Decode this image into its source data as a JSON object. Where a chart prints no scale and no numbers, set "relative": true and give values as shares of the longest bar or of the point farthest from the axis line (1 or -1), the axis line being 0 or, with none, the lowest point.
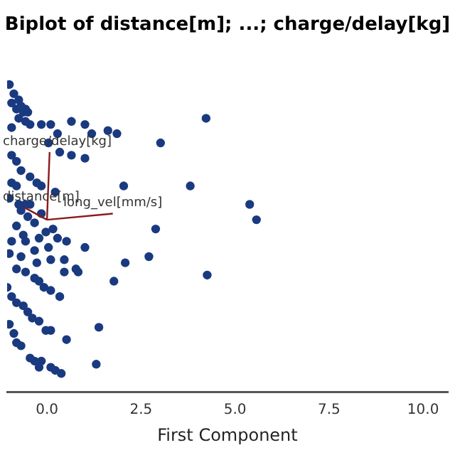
{
  "chart_data": {
    "type": "scatter",
    "title": "Biplot of distance[m]; ...; charge/delay[kg]",
    "xlabel": "First Component",
    "relative": true,
    "tick_labels": "x",
    "grid": false,
    "legend": false,
    "marker": "circle",
    "xlim": [
      -1.06,
      10.66
    ],
    "xticks": [
      {
        "value": 0,
        "label": "0.0"
      },
      {
        "value": 2.5,
        "label": "2.5"
      },
      {
        "value": 5,
        "label": "5.0"
      },
      {
        "value": 7.5,
        "label": "7.5"
      },
      {
        "value": 10,
        "label": "10.0"
      }
    ],
    "series": [
      {
        "color": "#1a3a80",
        "x": [
          -1.0,
          -0.88,
          -0.75,
          -0.94,
          -0.69,
          -0.57,
          -0.81,
          -0.63,
          -0.51,
          -0.75,
          -0.57,
          -0.45,
          -0.94,
          -0.15,
          0.1,
          0.65,
          1.01,
          1.19,
          1.62,
          1.86,
          0.28,
          0.04,
          0.34,
          0.65,
          1.01,
          3.02,
          4.23,
          -0.94,
          -0.81,
          -0.69,
          -0.45,
          -0.27,
          -0.15,
          -0.94,
          -0.81,
          0.22,
          2.04,
          3.81,
          -1.0,
          -0.75,
          -0.57,
          -0.45,
          -0.69,
          -0.51,
          -0.33,
          -0.15,
          0.16,
          -0.03,
          -0.81,
          -0.63,
          -0.94,
          -0.57,
          -0.21,
          0.28,
          0.52,
          1.01,
          -1.0,
          -0.69,
          -0.33,
          0.04,
          -0.27,
          0.1,
          0.46,
          0.77,
          0.83,
          0.46,
          2.89,
          2.71,
          2.08,
          1.78,
          4.26,
          -0.81,
          -0.57,
          -0.33,
          -0.21,
          -0.08,
          0.1,
          0.34,
          -1.06,
          -0.94,
          -0.81,
          -0.63,
          -0.51,
          -0.39,
          -0.21,
          -0.03,
          0.1,
          -1.0,
          -0.88,
          -0.81,
          -0.69,
          1.38,
          0.52,
          -0.45,
          -0.33,
          -0.15,
          -0.21,
          0.1,
          0.22,
          0.38,
          1.31,
          5.39,
          5.57
        ],
        "values": [
          1.0,
          0.97,
          0.95,
          0.94,
          0.93,
          0.92,
          0.92,
          0.91,
          0.91,
          0.89,
          0.88,
          0.87,
          0.86,
          0.87,
          0.87,
          0.88,
          0.87,
          0.84,
          0.85,
          0.84,
          0.84,
          0.81,
          0.78,
          0.77,
          0.76,
          0.81,
          0.89,
          0.77,
          0.75,
          0.72,
          0.7,
          0.68,
          0.67,
          0.68,
          0.67,
          0.65,
          0.67,
          0.67,
          0.63,
          0.61,
          0.61,
          0.61,
          0.59,
          0.57,
          0.55,
          0.58,
          0.53,
          0.52,
          0.54,
          0.51,
          0.49,
          0.49,
          0.5,
          0.5,
          0.49,
          0.47,
          0.45,
          0.44,
          0.46,
          0.47,
          0.42,
          0.43,
          0.43,
          0.4,
          0.39,
          0.39,
          0.53,
          0.44,
          0.42,
          0.36,
          0.38,
          0.4,
          0.39,
          0.37,
          0.36,
          0.34,
          0.33,
          0.31,
          0.34,
          0.31,
          0.29,
          0.28,
          0.26,
          0.24,
          0.23,
          0.2,
          0.2,
          0.22,
          0.19,
          0.16,
          0.15,
          0.21,
          0.17,
          0.11,
          0.1,
          0.1,
          0.08,
          0.08,
          0.07,
          0.06,
          0.09,
          0.61,
          0.56
        ]
      },
      {
        "type": "line",
        "name": "charge/delay[kg]",
        "marker": "none",
        "color": "#8b1a1a",
        "x": [
          0,
          0.07
        ],
        "values": [
          0.56,
          0.78
        ]
      },
      {
        "type": "line",
        "name": "distance[m]",
        "marker": "none",
        "color": "#8b1a1a",
        "x": [
          0,
          -0.6
        ],
        "values": [
          0.56,
          0.6
        ]
      },
      {
        "type": "line",
        "name": "long_vel[mm/s]",
        "marker": "none",
        "color": "#8b1a1a",
        "x": [
          0,
          1.75
        ],
        "values": [
          0.56,
          0.58
        ]
      }
    ]
  }
}
